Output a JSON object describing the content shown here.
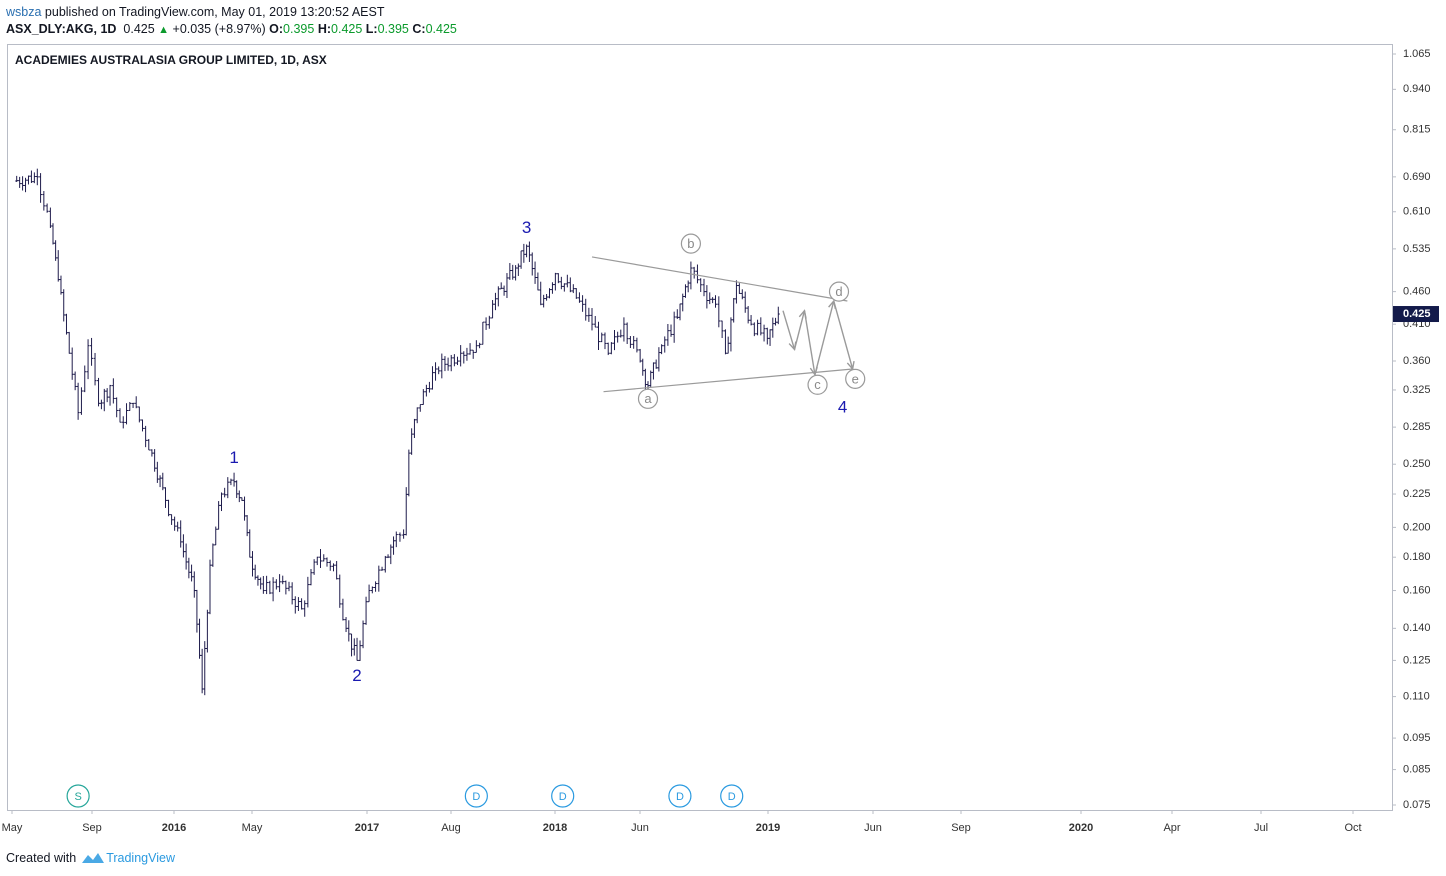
{
  "header": {
    "author": "wsbza",
    "published_text": " published on TradingView.com, May 01, 2019 13:20:52 AEST",
    "symbol": "ASX_DLY:AKG, 1D",
    "last": "0.425",
    "up_arrow": "▲",
    "change": "+0.035 (+8.97%)",
    "o_label": "O:",
    "o_value": "0.395",
    "h_label": "H:",
    "h_value": "0.425",
    "l_label": "L:",
    "l_value": "0.395",
    "c_label": "C:",
    "c_value": "0.425"
  },
  "chart_title": "ACADEMIES AUSTRALASIA GROUP LIMITED, 1D, ASX",
  "footer": {
    "created_with": "Created with",
    "brand": "TradingView"
  },
  "icons": {
    "footer_logo": "tradingview-logo-icon"
  },
  "colors": {
    "bars": "#1e1b4b",
    "wave_label": "#1a1ab0",
    "pattern_lines": "#9a9a9a",
    "event_marker": "#2a9ae0",
    "split_marker": "#26a69a",
    "price_tag": "#131a4a",
    "header_green": "#0b9a2c"
  },
  "chart_data": {
    "type": "ohlc",
    "title": "ACADEMIES AUSTRALASIA GROUP LIMITED, 1D, ASX",
    "y_scale": "log",
    "ylim": [
      0.075,
      1.065
    ],
    "y_ticks": [
      "1.065",
      "0.940",
      "0.815",
      "0.690",
      "0.610",
      "0.535",
      "0.460",
      "0.410",
      "0.360",
      "0.325",
      "0.285",
      "0.250",
      "0.225",
      "0.200",
      "0.180",
      "0.160",
      "0.140",
      "0.125",
      "0.110",
      "0.095",
      "0.085",
      "0.075"
    ],
    "last_price_tag": "0.425",
    "x_ticks": [
      "May",
      "Sep",
      "2016",
      "May",
      "2017",
      "Aug",
      "2018",
      "Jun",
      "D",
      "2019",
      "Jun",
      "Sep",
      "2020",
      "Apr",
      "Jul",
      "Oct"
    ],
    "price_path": [
      {
        "date": "2015-05-01",
        "close": 0.68
      },
      {
        "date": "2015-06-15",
        "close": 0.69
      },
      {
        "date": "2015-07-10",
        "close": 0.58
      },
      {
        "date": "2015-07-25",
        "close": 0.48
      },
      {
        "date": "2015-08-15",
        "close": 0.37
      },
      {
        "date": "2015-09-01",
        "close": 0.3
      },
      {
        "date": "2015-09-20",
        "close": 0.38
      },
      {
        "date": "2015-10-10",
        "close": 0.31
      },
      {
        "date": "2015-11-01",
        "close": 0.33
      },
      {
        "date": "2015-11-20",
        "close": 0.29
      },
      {
        "date": "2015-12-15",
        "close": 0.31
      },
      {
        "date": "2016-01-20",
        "close": 0.26
      },
      {
        "date": "2016-02-15",
        "close": 0.22
      },
      {
        "date": "2016-03-15",
        "close": 0.19
      },
      {
        "date": "2016-04-10",
        "close": 0.16
      },
      {
        "date": "2016-04-25",
        "close": 0.113
      },
      {
        "date": "2016-05-10",
        "close": 0.175
      },
      {
        "date": "2016-06-01",
        "close": 0.225
      },
      {
        "date": "2016-06-25",
        "close": 0.235
      },
      {
        "date": "2016-07-10",
        "close": 0.22
      },
      {
        "date": "2016-07-25",
        "close": 0.18
      },
      {
        "date": "2016-08-20",
        "close": 0.16
      },
      {
        "date": "2016-09-20",
        "close": 0.165
      },
      {
        "date": "2016-11-01",
        "close": 0.15
      },
      {
        "date": "2016-12-01",
        "close": 0.18
      },
      {
        "date": "2017-01-01",
        "close": 0.175
      },
      {
        "date": "2017-01-25",
        "close": 0.14
      },
      {
        "date": "2017-02-15",
        "close": 0.125
      },
      {
        "date": "2017-03-10",
        "close": 0.16
      },
      {
        "date": "2017-04-10",
        "close": 0.18
      },
      {
        "date": "2017-05-01",
        "close": 0.195
      },
      {
        "date": "2017-05-15",
        "close": 0.195
      },
      {
        "date": "2017-05-25",
        "close": 0.26
      },
      {
        "date": "2017-06-10",
        "close": 0.305
      },
      {
        "date": "2017-07-15",
        "close": 0.35
      },
      {
        "date": "2017-09-01",
        "close": 0.37
      },
      {
        "date": "2017-10-01",
        "close": 0.38
      },
      {
        "date": "2017-11-01",
        "close": 0.44
      },
      {
        "date": "2017-12-15",
        "close": 0.5
      },
      {
        "date": "2018-01-05",
        "close": 0.54
      },
      {
        "date": "2018-02-01",
        "close": 0.44
      },
      {
        "date": "2018-03-01",
        "close": 0.49
      },
      {
        "date": "2018-04-10",
        "close": 0.45
      },
      {
        "date": "2018-05-10",
        "close": 0.41
      },
      {
        "date": "2018-06-10",
        "close": 0.37
      },
      {
        "date": "2018-07-10",
        "close": 0.41
      },
      {
        "date": "2018-08-10",
        "close": 0.36
      },
      {
        "date": "2018-08-25",
        "close": 0.33
      },
      {
        "date": "2018-09-20",
        "close": 0.38
      },
      {
        "date": "2018-10-20",
        "close": 0.42
      },
      {
        "date": "2018-11-15",
        "close": 0.5
      },
      {
        "date": "2018-12-10",
        "close": 0.46
      },
      {
        "date": "2019-01-01",
        "close": 0.44
      },
      {
        "date": "2019-01-20",
        "close": 0.37
      },
      {
        "date": "2019-02-10",
        "close": 0.47
      },
      {
        "date": "2019-03-10",
        "close": 0.41
      },
      {
        "date": "2019-04-10",
        "close": 0.39
      },
      {
        "date": "2019-05-01",
        "close": 0.425
      }
    ],
    "wave_labels": [
      {
        "label": "1",
        "date": "2016-06-25",
        "price": 0.255
      },
      {
        "label": "2",
        "date": "2017-02-15",
        "price": 0.118
      },
      {
        "label": "3",
        "date": "2018-01-05",
        "price": 0.575
      },
      {
        "label": "4",
        "date": "2019-09-01",
        "price": 0.305
      }
    ],
    "triangle_labels": [
      {
        "label": "a",
        "date": "2018-08-25",
        "price": 0.315
      },
      {
        "label": "b",
        "date": "2018-11-15",
        "price": 0.545
      },
      {
        "label": "c",
        "date": "2019-07-15",
        "price": 0.331
      },
      {
        "label": "d",
        "date": "2019-08-25",
        "price": 0.46
      },
      {
        "label": "e",
        "date": "2019-09-25",
        "price": 0.338
      }
    ],
    "trendlines": [
      {
        "from": {
          "date": "2018-05-10",
          "price": 0.52
        },
        "to": {
          "date": "2019-09-10",
          "price": 0.445
        }
      },
      {
        "from": {
          "date": "2018-06-01",
          "price": 0.323
        },
        "to": {
          "date": "2019-09-20",
          "price": 0.35
        }
      }
    ],
    "projection_path": [
      {
        "date": "2019-05-10",
        "price": 0.43
      },
      {
        "date": "2019-06-01",
        "price": 0.375
      },
      {
        "date": "2019-06-20",
        "price": 0.43
      },
      {
        "date": "2019-07-10",
        "price": 0.343
      },
      {
        "date": "2019-08-15",
        "price": 0.445
      },
      {
        "date": "2019-09-20",
        "price": 0.35
      }
    ],
    "event_markers": [
      {
        "label": "S",
        "date": "2015-09-01",
        "kind": "split"
      },
      {
        "label": "D",
        "date": "2017-10-01",
        "kind": "dividend"
      },
      {
        "label": "D",
        "date": "2018-03-15",
        "kind": "dividend"
      },
      {
        "label": "D",
        "date": "2018-10-25",
        "kind": "dividend"
      },
      {
        "label": "D",
        "date": "2019-02-01",
        "kind": "dividend"
      }
    ]
  }
}
